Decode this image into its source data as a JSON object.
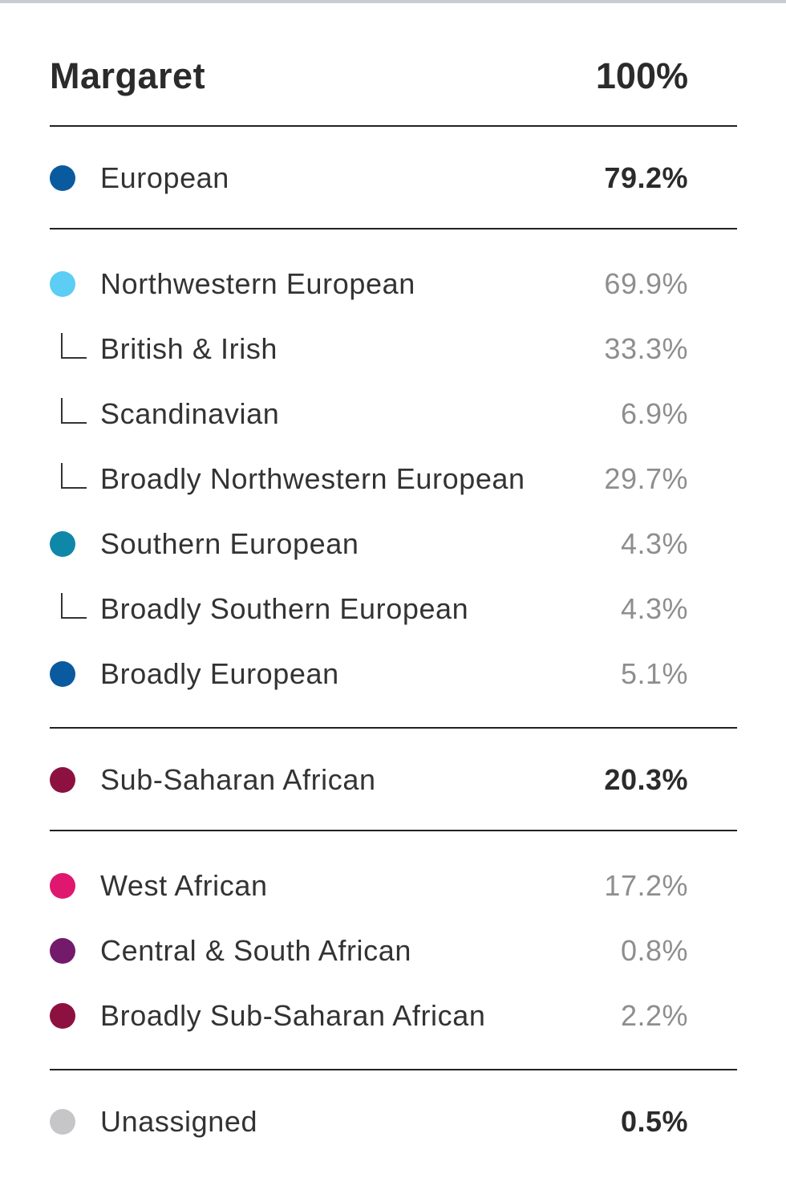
{
  "header": {
    "name": "Margaret",
    "total": "100%"
  },
  "colors": {
    "european": "#0a5aa0",
    "northwestern": "#5ccdf4",
    "southern": "#0e87a8",
    "broadly_european": "#0a5aa0",
    "sub_saharan": "#8c1140",
    "west_african": "#e0176f",
    "central_south": "#741a6b",
    "broadly_sub_saharan": "#8c1140",
    "unassigned": "#c6c6c8"
  },
  "rows": [
    {
      "label": "European",
      "pct": "79.2%"
    },
    {
      "label": "Northwestern European",
      "pct": "69.9%"
    },
    {
      "label": "British & Irish",
      "pct": "33.3%"
    },
    {
      "label": "Scandinavian",
      "pct": "6.9%"
    },
    {
      "label": "Broadly Northwestern European",
      "pct": "29.7%"
    },
    {
      "label": "Southern European",
      "pct": "4.3%"
    },
    {
      "label": "Broadly Southern European",
      "pct": "4.3%"
    },
    {
      "label": "Broadly European",
      "pct": "5.1%"
    },
    {
      "label": "Sub-Saharan African",
      "pct": "20.3%"
    },
    {
      "label": "West African",
      "pct": "17.2%"
    },
    {
      "label": "Central & South African",
      "pct": "0.8%"
    },
    {
      "label": "Broadly Sub-Saharan African",
      "pct": "2.2%"
    },
    {
      "label": "Unassigned",
      "pct": "0.5%"
    }
  ]
}
